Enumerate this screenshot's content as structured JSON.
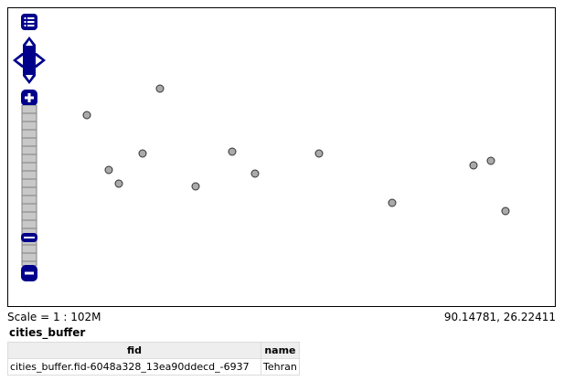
{
  "map": {
    "status": {
      "scale_label": "Scale = 1 : 102M",
      "mouse_position": "90.14781, 26.22411"
    },
    "controls": {
      "layer_switcher_icon": "layer-list-icon",
      "pan_icons": [
        "pan-up-icon",
        "pan-left-icon",
        "pan-right-icon",
        "pan-down-icon"
      ],
      "zoom_in_icon": "zoom-in-icon",
      "zoom_out_icon": "zoom-out-icon",
      "zoom_bar_colors": {
        "bar": "#c8c8c8",
        "accent": "#00008b"
      }
    },
    "point_style": {
      "fill": "#aaaaaa",
      "stroke": "#333333"
    },
    "point_count": 13
  },
  "layer": {
    "title": "cities_buffer",
    "table": {
      "columns": [
        "fid",
        "name"
      ],
      "rows": [
        [
          "cities_buffer.fid-6048a328_13ea90ddecd_-6937",
          "Tehran"
        ]
      ]
    }
  }
}
